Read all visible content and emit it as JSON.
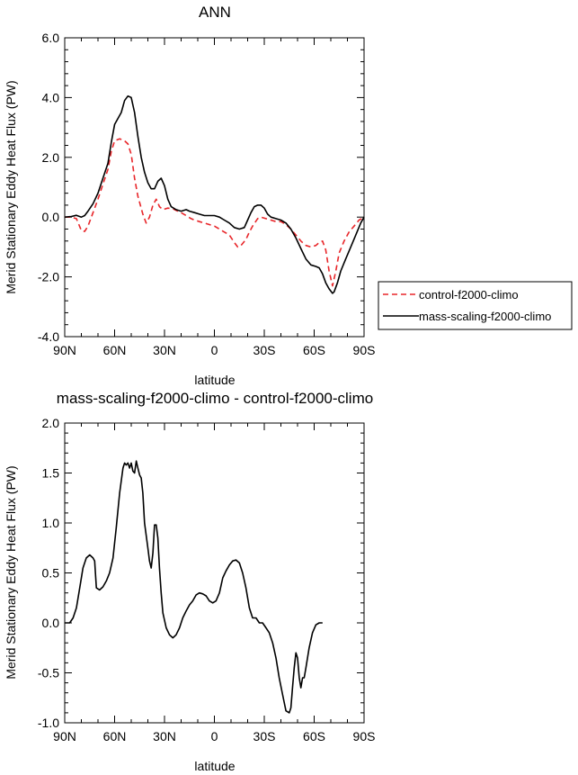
{
  "chart_data": [
    {
      "type": "line",
      "title": "ANN",
      "xlabel": "latitude",
      "ylabel": "Merid Stationary Eddy Heat Flux (PW)",
      "xlim": [
        90,
        -90
      ],
      "ylim": [
        -4.0,
        6.0
      ],
      "xticks": [
        {
          "v": 90,
          "label": "90N"
        },
        {
          "v": 60,
          "label": "60N"
        },
        {
          "v": 30,
          "label": "30N"
        },
        {
          "v": 0,
          "label": "0"
        },
        {
          "v": -30,
          "label": "30S"
        },
        {
          "v": -60,
          "label": "60S"
        },
        {
          "v": -90,
          "label": "90S"
        }
      ],
      "yticks": [
        {
          "v": 6.0,
          "label": "6.0"
        },
        {
          "v": 4.0,
          "label": "4.0"
        },
        {
          "v": 2.0,
          "label": "2.0"
        },
        {
          "v": 0.0,
          "label": "0.0"
        },
        {
          "v": -2.0,
          "label": "-2.0"
        },
        {
          "v": -4.0,
          "label": "-4.0"
        }
      ],
      "series": [
        {
          "name": "control-f2000-climo",
          "color": "#e8262a",
          "dash": true,
          "points": [
            [
              90,
              0
            ],
            [
              86,
              0
            ],
            [
              83,
              -0.05
            ],
            [
              80,
              -0.45
            ],
            [
              78,
              -0.48
            ],
            [
              76,
              -0.3
            ],
            [
              73,
              0.15
            ],
            [
              70,
              0.6
            ],
            [
              67,
              1.1
            ],
            [
              64,
              1.6
            ],
            [
              62,
              2.2
            ],
            [
              60,
              2.55
            ],
            [
              57,
              2.62
            ],
            [
              54,
              2.55
            ],
            [
              52,
              2.45
            ],
            [
              50,
              2.1
            ],
            [
              48,
              1.3
            ],
            [
              46,
              0.7
            ],
            [
              43,
              0.1
            ],
            [
              41,
              -0.2
            ],
            [
              39,
              0.0
            ],
            [
              37,
              0.4
            ],
            [
              35,
              0.6
            ],
            [
              33,
              0.35
            ],
            [
              31,
              0.25
            ],
            [
              28,
              0.3
            ],
            [
              25,
              0.28
            ],
            [
              22,
              0.2
            ],
            [
              20,
              0.15
            ],
            [
              17,
              0.05
            ],
            [
              14,
              -0.05
            ],
            [
              12,
              -0.1
            ],
            [
              9,
              -0.15
            ],
            [
              6,
              -0.2
            ],
            [
              3,
              -0.25
            ],
            [
              0,
              -0.3
            ],
            [
              -3,
              -0.4
            ],
            [
              -6,
              -0.5
            ],
            [
              -9,
              -0.6
            ],
            [
              -12,
              -0.85
            ],
            [
              -14,
              -1.0
            ],
            [
              -16,
              -0.95
            ],
            [
              -19,
              -0.75
            ],
            [
              -21,
              -0.5
            ],
            [
              -23,
              -0.3
            ],
            [
              -26,
              -0.05
            ],
            [
              -28,
              0.0
            ],
            [
              -31,
              -0.05
            ],
            [
              -34,
              -0.1
            ],
            [
              -37,
              -0.15
            ],
            [
              -40,
              -0.15
            ],
            [
              -43,
              -0.25
            ],
            [
              -46,
              -0.4
            ],
            [
              -49,
              -0.6
            ],
            [
              -52,
              -0.8
            ],
            [
              -55,
              -0.95
            ],
            [
              -58,
              -1.0
            ],
            [
              -61,
              -0.95
            ],
            [
              -63,
              -0.85
            ],
            [
              -65,
              -0.8
            ],
            [
              -67,
              -1.1
            ],
            [
              -69,
              -1.8
            ],
            [
              -71,
              -2.3
            ],
            [
              -73,
              -1.8
            ],
            [
              -75,
              -1.2
            ],
            [
              -78,
              -0.8
            ],
            [
              -81,
              -0.5
            ],
            [
              -84,
              -0.3
            ],
            [
              -87,
              -0.1
            ],
            [
              -90,
              0
            ]
          ]
        },
        {
          "name": "mass-scaling-f2000-climo",
          "color": "#000000",
          "dash": false,
          "points": [
            [
              90,
              0
            ],
            [
              86,
              0.02
            ],
            [
              83,
              0.06
            ],
            [
              80,
              0.0
            ],
            [
              78,
              0.05
            ],
            [
              76,
              0.2
            ],
            [
              73,
              0.45
            ],
            [
              70,
              0.8
            ],
            [
              67,
              1.3
            ],
            [
              64,
              1.8
            ],
            [
              62,
              2.5
            ],
            [
              60,
              3.1
            ],
            [
              58,
              3.3
            ],
            [
              56,
              3.5
            ],
            [
              54,
              3.9
            ],
            [
              52,
              4.05
            ],
            [
              50,
              4.0
            ],
            [
              48,
              3.5
            ],
            [
              46,
              2.7
            ],
            [
              44,
              2.0
            ],
            [
              42,
              1.5
            ],
            [
              40,
              1.15
            ],
            [
              38,
              0.95
            ],
            [
              36,
              0.95
            ],
            [
              34,
              1.2
            ],
            [
              32,
              1.3
            ],
            [
              30,
              1.05
            ],
            [
              28,
              0.6
            ],
            [
              26,
              0.35
            ],
            [
              23,
              0.25
            ],
            [
              20,
              0.2
            ],
            [
              17,
              0.25
            ],
            [
              15,
              0.2
            ],
            [
              12,
              0.15
            ],
            [
              9,
              0.1
            ],
            [
              6,
              0.05
            ],
            [
              3,
              0.05
            ],
            [
              0,
              0.05
            ],
            [
              -3,
              0.0
            ],
            [
              -6,
              -0.1
            ],
            [
              -9,
              -0.2
            ],
            [
              -12,
              -0.35
            ],
            [
              -15,
              -0.4
            ],
            [
              -18,
              -0.35
            ],
            [
              -20,
              -0.1
            ],
            [
              -22,
              0.15
            ],
            [
              -24,
              0.35
            ],
            [
              -26,
              0.4
            ],
            [
              -28,
              0.4
            ],
            [
              -30,
              0.3
            ],
            [
              -32,
              0.1
            ],
            [
              -34,
              0.0
            ],
            [
              -37,
              -0.05
            ],
            [
              -40,
              -0.1
            ],
            [
              -43,
              -0.2
            ],
            [
              -46,
              -0.4
            ],
            [
              -49,
              -0.7
            ],
            [
              -52,
              -1.05
            ],
            [
              -55,
              -1.4
            ],
            [
              -58,
              -1.6
            ],
            [
              -61,
              -1.65
            ],
            [
              -63,
              -1.7
            ],
            [
              -65,
              -1.9
            ],
            [
              -67,
              -2.2
            ],
            [
              -69,
              -2.4
            ],
            [
              -71,
              -2.55
            ],
            [
              -72,
              -2.5
            ],
            [
              -74,
              -2.2
            ],
            [
              -76,
              -1.8
            ],
            [
              -79,
              -1.4
            ],
            [
              -82,
              -1.0
            ],
            [
              -85,
              -0.6
            ],
            [
              -88,
              -0.2
            ],
            [
              -90,
              0
            ]
          ]
        }
      ],
      "legend": [
        "control-f2000-climo",
        "mass-scaling-f2000-climo"
      ],
      "legend_position": "right"
    },
    {
      "type": "line",
      "title": "mass-scaling-f2000-climo - control-f2000-climo",
      "xlabel": "latitude",
      "ylabel": "Merid Stationary Eddy Heat Flux (PW)",
      "xlim": [
        90,
        -90
      ],
      "ylim": [
        -1.0,
        2.0
      ],
      "xticks": [
        {
          "v": 90,
          "label": "90N"
        },
        {
          "v": 60,
          "label": "60N"
        },
        {
          "v": 30,
          "label": "30N"
        },
        {
          "v": 0,
          "label": "0"
        },
        {
          "v": -30,
          "label": "30S"
        },
        {
          "v": -60,
          "label": "60S"
        },
        {
          "v": -90,
          "label": "90S"
        }
      ],
      "yticks": [
        {
          "v": 2.0,
          "label": "2.0"
        },
        {
          "v": 1.5,
          "label": "1.5"
        },
        {
          "v": 1.0,
          "label": "1.0"
        },
        {
          "v": 0.5,
          "label": "0.5"
        },
        {
          "v": 0.0,
          "label": "0.0"
        },
        {
          "v": -0.5,
          "label": "-0.5"
        },
        {
          "v": -1.0,
          "label": "-1.0"
        }
      ],
      "series": [
        {
          "name": "mass-scaling-f2000-climo - control-f2000-climo",
          "color": "#000000",
          "dash": false,
          "points": [
            [
              90,
              0
            ],
            [
              87,
              0
            ],
            [
              85,
              0.05
            ],
            [
              83,
              0.15
            ],
            [
              81,
              0.35
            ],
            [
              79,
              0.55
            ],
            [
              77,
              0.65
            ],
            [
              75,
              0.68
            ],
            [
              73,
              0.65
            ],
            [
              72,
              0.62
            ],
            [
              71,
              0.35
            ],
            [
              69,
              0.33
            ],
            [
              67,
              0.36
            ],
            [
              65,
              0.42
            ],
            [
              63,
              0.5
            ],
            [
              61,
              0.65
            ],
            [
              59,
              0.95
            ],
            [
              57,
              1.3
            ],
            [
              55,
              1.55
            ],
            [
              54,
              1.6
            ],
            [
              53,
              1.58
            ],
            [
              52,
              1.6
            ],
            [
              51,
              1.55
            ],
            [
              50,
              1.6
            ],
            [
              49,
              1.52
            ],
            [
              48,
              1.5
            ],
            [
              47,
              1.62
            ],
            [
              46,
              1.55
            ],
            [
              45,
              1.48
            ],
            [
              44,
              1.45
            ],
            [
              43,
              1.3
            ],
            [
              42,
              1.0
            ],
            [
              40,
              0.75
            ],
            [
              39,
              0.62
            ],
            [
              38,
              0.55
            ],
            [
              37,
              0.7
            ],
            [
              36,
              0.98
            ],
            [
              35,
              0.98
            ],
            [
              34,
              0.85
            ],
            [
              33,
              0.55
            ],
            [
              32,
              0.3
            ],
            [
              31,
              0.1
            ],
            [
              29,
              -0.05
            ],
            [
              27,
              -0.12
            ],
            [
              25,
              -0.15
            ],
            [
              23,
              -0.12
            ],
            [
              21,
              -0.05
            ],
            [
              19,
              0.05
            ],
            [
              17,
              0.12
            ],
            [
              15,
              0.18
            ],
            [
              13,
              0.22
            ],
            [
              11,
              0.28
            ],
            [
              9,
              0.3
            ],
            [
              7,
              0.29
            ],
            [
              5,
              0.27
            ],
            [
              3,
              0.22
            ],
            [
              1,
              0.2
            ],
            [
              -1,
              0.22
            ],
            [
              -3,
              0.3
            ],
            [
              -5,
              0.45
            ],
            [
              -7,
              0.52
            ],
            [
              -9,
              0.58
            ],
            [
              -11,
              0.62
            ],
            [
              -13,
              0.63
            ],
            [
              -15,
              0.6
            ],
            [
              -17,
              0.5
            ],
            [
              -19,
              0.35
            ],
            [
              -21,
              0.15
            ],
            [
              -23,
              0.05
            ],
            [
              -25,
              0.05
            ],
            [
              -27,
              0.0
            ],
            [
              -29,
              0.0
            ],
            [
              -31,
              -0.05
            ],
            [
              -33,
              -0.1
            ],
            [
              -35,
              -0.2
            ],
            [
              -37,
              -0.35
            ],
            [
              -39,
              -0.55
            ],
            [
              -41,
              -0.72
            ],
            [
              -43,
              -0.88
            ],
            [
              -45,
              -0.9
            ],
            [
              -46,
              -0.85
            ],
            [
              -47,
              -0.65
            ],
            [
              -48,
              -0.45
            ],
            [
              -49,
              -0.3
            ],
            [
              -50,
              -0.35
            ],
            [
              -51,
              -0.55
            ],
            [
              -52,
              -0.65
            ],
            [
              -53,
              -0.55
            ],
            [
              -54,
              -0.55
            ],
            [
              -55,
              -0.45
            ],
            [
              -57,
              -0.25
            ],
            [
              -59,
              -0.1
            ],
            [
              -61,
              -0.02
            ],
            [
              -63,
              0.0
            ],
            [
              -65,
              0.0
            ]
          ]
        }
      ]
    }
  ]
}
